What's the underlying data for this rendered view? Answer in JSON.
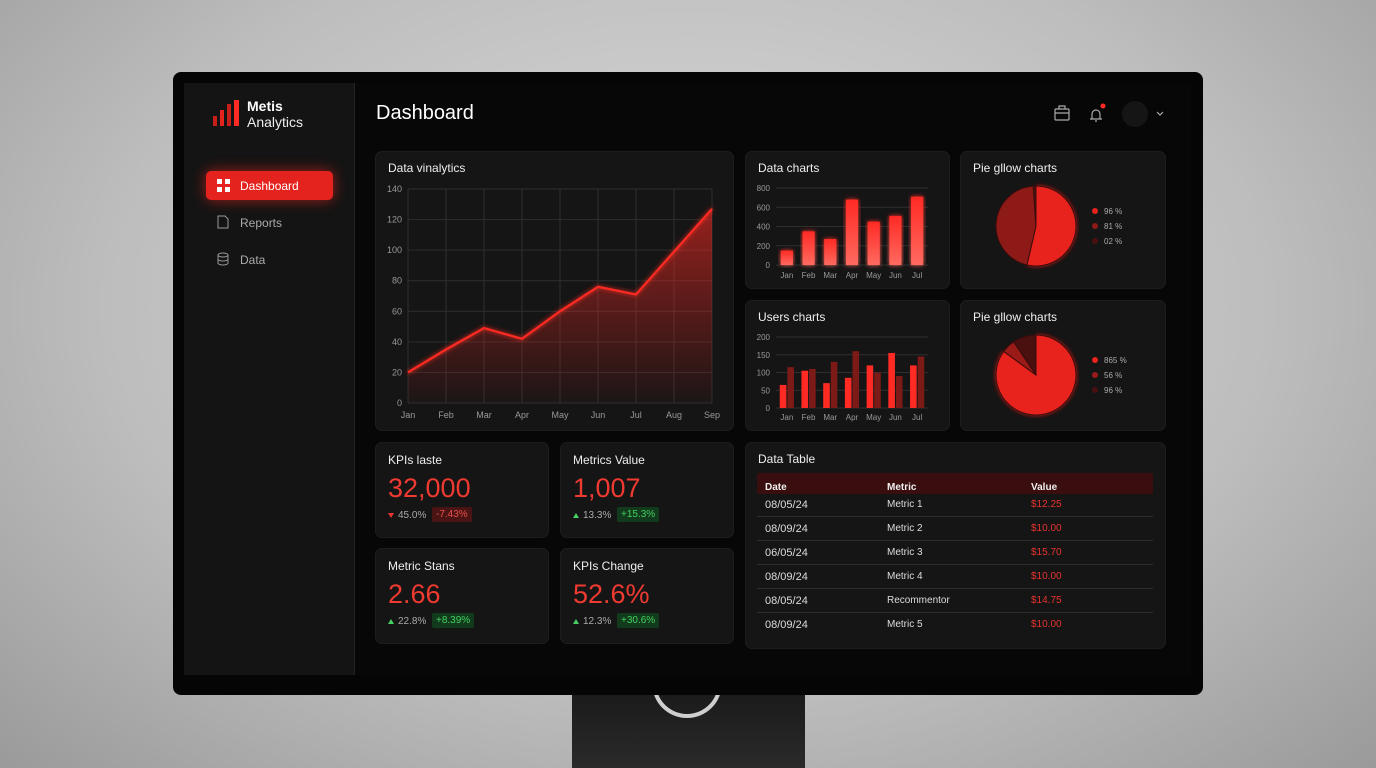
{
  "brand": {
    "name": "Metis",
    "subtitle": "Analytics"
  },
  "nav": [
    {
      "label": "Dashboard",
      "active": true
    },
    {
      "label": "Reports",
      "active": false
    },
    {
      "label": "Data",
      "active": false
    }
  ],
  "header": {
    "title": "Dashboard"
  },
  "charts": [
    {
      "type": "line",
      "title": "Data vinalytics",
      "categories": [
        "Jan",
        "Feb",
        "Mar",
        "Apr",
        "May",
        "Jun",
        "Jul",
        "Aug",
        "Sep"
      ],
      "values": [
        20,
        35,
        49,
        42,
        60,
        76,
        71,
        99,
        127
      ],
      "ylim": [
        0,
        140
      ],
      "yticks": [
        0,
        20,
        40,
        60,
        80,
        100,
        120,
        140
      ],
      "color": "#ff2a24",
      "grid": true
    },
    {
      "type": "bar",
      "title": "Data charts",
      "categories": [
        "Jan",
        "Feb",
        "Mar",
        "Apr",
        "May",
        "Jun",
        "Jul"
      ],
      "values": [
        150,
        350,
        270,
        680,
        450,
        510,
        710
      ],
      "ylim": [
        0,
        800
      ],
      "yticks": [
        0,
        200,
        400,
        600,
        800
      ],
      "color": "#ff2a24",
      "grid": true
    },
    {
      "type": "groupedbar",
      "title": "Users charts",
      "categories": [
        "Jan",
        "Feb",
        "Mar",
        "Apr",
        "May",
        "Jun",
        "Jul"
      ],
      "series": [
        {
          "color": "#ff2a24",
          "values": [
            65,
            105,
            70,
            85,
            120,
            155,
            120
          ]
        },
        {
          "color": "#7c1a18",
          "values": [
            115,
            110,
            130,
            160,
            100,
            90,
            145
          ]
        }
      ],
      "ylim": [
        0,
        200
      ],
      "yticks": [
        0,
        50,
        100,
        150,
        200
      ],
      "grid": true
    },
    {
      "type": "pie",
      "title": "Pie gllow charts",
      "values": [
        96,
        81,
        2
      ],
      "value_labels": [
        "96 %",
        "81 %",
        "02 %"
      ],
      "colors": [
        "#e8231e",
        "#8e1a17",
        "#4a1010"
      ]
    },
    {
      "type": "pie",
      "title": "Pie gllow charts",
      "values": [
        865,
        56,
        96
      ],
      "value_labels": [
        "865 %",
        "56 %",
        "96 %"
      ],
      "colors": [
        "#e8231e",
        "#9a1b18",
        "#4a1010"
      ]
    }
  ],
  "kpis": [
    {
      "title": "KPIs laste",
      "value": "32,000",
      "change": "45.0%",
      "delta": "-7.43%",
      "trend": "down"
    },
    {
      "title": "Metrics Value",
      "value": "1,007",
      "change": "13.3%",
      "delta": "+15.3%",
      "trend": "up"
    },
    {
      "title": "Metric Stans",
      "value": "2.66",
      "change": "22.8%",
      "delta": "+8.39%",
      "trend": "up"
    },
    {
      "title": "KPIs Change",
      "value": "52.6%",
      "change": "12.3%",
      "delta": "+30.6%",
      "trend": "up"
    }
  ],
  "table": {
    "title": "Data Table",
    "columns": [
      "Date",
      "Metric",
      "Value"
    ],
    "rows": [
      [
        "08/05/24",
        "Metric 1",
        "$12.25"
      ],
      [
        "08/09/24",
        "Metric 2",
        "$10.00"
      ],
      [
        "06/05/24",
        "Metric 3",
        "$15.70"
      ],
      [
        "08/09/24",
        "Metric 4",
        "$10.00"
      ],
      [
        "08/05/24",
        "Recommentor",
        "$14.75"
      ],
      [
        "08/09/24",
        "Metric 5",
        "$10.00"
      ]
    ]
  }
}
